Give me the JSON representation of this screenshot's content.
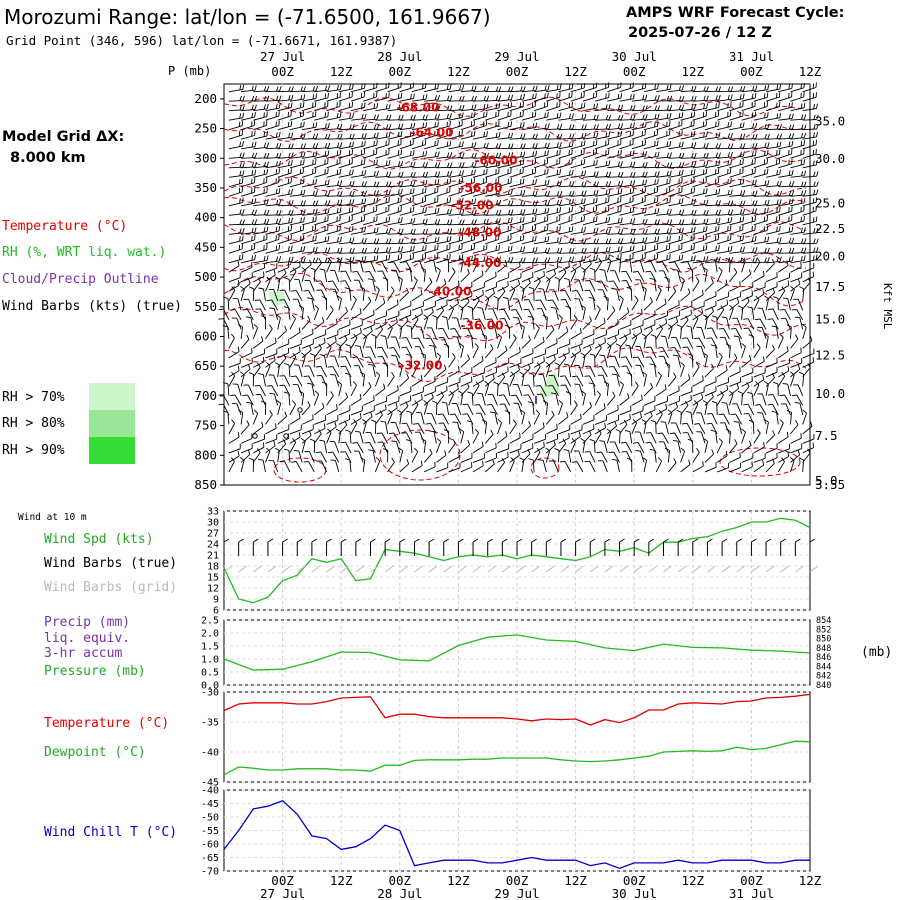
{
  "header": {
    "title": "Morozumi Range:  lat/lon = (-71.6500, 161.9667)",
    "grid_point": "Grid Point (346, 596) lat/lon = (-71.6671, 161.9387)",
    "cycle_label": "AMPS WRF Forecast Cycle:",
    "cycle_value": "2025-07-26 / 12  Z"
  },
  "left_panel": {
    "model_grid_label": "Model Grid ΔX:",
    "model_grid_value": "8.000 km",
    "legend": [
      {
        "text": "Temperature (°C)",
        "color": "#e00000"
      },
      {
        "text": "RH (%, WRT liq. wat.)",
        "color": "#22bb22"
      },
      {
        "text": "Cloud/Precip Outline",
        "color": "#7a33aa"
      },
      {
        "text": "Wind Barbs (kts) (true)",
        "color": "#000000"
      }
    ],
    "rh_legend": [
      {
        "text": "RH > 70%",
        "color": "#ccf5cc"
      },
      {
        "text": "RH > 80%",
        "color": "#99e699"
      },
      {
        "text": "RH > 90%",
        "color": "#33dd33"
      }
    ]
  },
  "time_axis": {
    "top_day_labels": [
      "27 Jul",
      "28 Jul",
      "29 Jul",
      "30 Jul",
      "31 Jul"
    ],
    "hour_labels": [
      "00Z",
      "12Z",
      "00Z",
      "12Z",
      "00Z",
      "12Z",
      "00Z",
      "12Z",
      "00Z",
      "12Z"
    ],
    "bottom_hour_labels": [
      "00Z",
      "12Z",
      "00Z",
      "12Z",
      "00Z",
      "12Z",
      "00Z",
      "12Z",
      "00Z",
      "12Z"
    ],
    "bottom_day_labels": [
      "27 Jul",
      "28 Jul",
      "29 Jul",
      "30 Jul",
      "31 Jul"
    ]
  },
  "chart_data": [
    {
      "type": "heatmap",
      "panel": "cross-section",
      "y_axis_title": "P (mb)",
      "y_ticks": [
        "200",
        "250",
        "300",
        "350",
        "400",
        "450",
        "500",
        "550",
        "600",
        "650",
        "700",
        "750",
        "800",
        "850"
      ],
      "right_ticks": [
        "35.0",
        "30.0",
        "25.0",
        "22.5",
        "20.0",
        "17.5",
        "15.0",
        "12.5",
        "10.0",
        "7.5",
        "5.0",
        "3.55"
      ],
      "right_axis_title": "Kft MSL",
      "temperature_contour_labels": [
        "-68.00",
        "-64.00",
        "-60.00",
        "-56.00",
        "-52.00",
        "-48.00",
        "-44.00",
        "-40.00",
        "-36.00",
        "-32.00"
      ],
      "temperature_contours_c": [
        -68,
        -64,
        -60,
        -56,
        -52,
        -48,
        -44,
        -40,
        -36,
        -32
      ],
      "temperature_contour_pressure_mb": [
        213,
        255,
        302,
        348,
        378,
        423,
        475,
        523,
        580,
        647
      ]
    },
    {
      "type": "line",
      "panel": "surface wind",
      "top_label": "Wind at 10 m",
      "labels": [
        {
          "text": "Wind Spd (kts)",
          "color": "#22aa22"
        },
        {
          "text": "Wind Barbs (true)",
          "color": "#000000"
        },
        {
          "text": "Wind Barbs (grid)",
          "color": "#bbbbbb"
        }
      ],
      "y_ticks": [
        "33",
        "30",
        "27",
        "24",
        "21",
        "18",
        "15",
        "12",
        "9",
        "6"
      ],
      "ylim": [
        6,
        33
      ],
      "series": [
        {
          "name": "Wind Spd (kts)",
          "color": "#22bb22",
          "x": [
            0,
            3,
            6,
            9,
            12,
            15,
            18,
            21,
            24,
            27,
            30,
            33,
            36,
            39,
            42,
            45,
            48,
            51,
            54,
            57,
            60,
            63,
            66,
            69,
            72,
            75,
            78,
            81,
            84,
            87,
            90,
            93,
            96,
            99,
            102,
            105,
            108,
            111,
            114,
            117,
            120
          ],
          "values": [
            17.5,
            9,
            8,
            9.5,
            14,
            15.5,
            20,
            19,
            20,
            14,
            14.5,
            22.5,
            22,
            21.5,
            20.5,
            19.5,
            20.5,
            21,
            20.5,
            21,
            20,
            21,
            20.5,
            20,
            19.5,
            20.5,
            22.5,
            22,
            23,
            21.5,
            24.5,
            24.5,
            25.5,
            26,
            27.5,
            28.5,
            30,
            30,
            31,
            30.5,
            28.5
          ]
        }
      ]
    },
    {
      "type": "line",
      "panel": "precip and pressure",
      "labels": [
        {
          "text": "Precip (mm)",
          "color": "#7a33aa"
        },
        {
          "text": "liq. equiv.",
          "color": "#7a33aa"
        },
        {
          "text": "3-hr accum",
          "color": "#7a33aa"
        },
        {
          "text": "Pressure (mb)",
          "color": "#22aa22"
        }
      ],
      "y_ticks_left": [
        "2.5",
        "2.0",
        "1.5",
        "1.0",
        "0.5",
        "0.0"
      ],
      "y_ticks_right": [
        "854",
        "852",
        "850",
        "848",
        "846",
        "844",
        "842",
        "840"
      ],
      "right_axis_title": "(mb)",
      "ylim_left": [
        0,
        2.5
      ],
      "ylim_right": [
        840,
        854
      ],
      "series": [
        {
          "name": "Pressure (mb)",
          "color": "#22bb22",
          "x": [
            0,
            6,
            12,
            18,
            24,
            30,
            36,
            42,
            48,
            54,
            60,
            66,
            72,
            78,
            84,
            90,
            96,
            102,
            108,
            114,
            120
          ],
          "values": [
            845.6,
            843.2,
            843.4,
            845,
            847.1,
            847,
            845.4,
            845.2,
            848.5,
            850.3,
            850.8,
            849.7,
            849.4,
            848.0,
            847.4,
            848.8,
            848.1,
            848.0,
            847.5,
            847.3,
            846.9
          ]
        }
      ]
    },
    {
      "type": "line",
      "panel": "temperature and dewpoint",
      "labels": [
        {
          "text": "Temperature (°C)",
          "color": "#e00000"
        },
        {
          "text": "Dewpoint (°C)",
          "color": "#22aa22"
        }
      ],
      "y_ticks": [
        "-30",
        "-35",
        "-40",
        "-45"
      ],
      "ylim": [
        -45,
        -30
      ],
      "series": [
        {
          "name": "Temperature (°C)",
          "color": "#dd0000",
          "x": [
            0,
            3,
            6,
            9,
            12,
            15,
            18,
            21,
            24,
            27,
            30,
            33,
            36,
            39,
            42,
            45,
            48,
            51,
            54,
            57,
            60,
            63,
            66,
            69,
            72,
            75,
            78,
            81,
            84,
            87,
            90,
            93,
            96,
            99,
            102,
            105,
            108,
            111,
            114,
            117,
            120
          ],
          "values": [
            -33.1,
            -32.0,
            -31.8,
            -31.8,
            -31.8,
            -32.0,
            -32.0,
            -31.6,
            -31.0,
            -30.9,
            -30.8,
            -34.3,
            -33.7,
            -33.7,
            -34.1,
            -34.3,
            -34.3,
            -34.3,
            -34.3,
            -34.3,
            -34.5,
            -34.8,
            -34.5,
            -34.6,
            -34.5,
            -35.5,
            -34.6,
            -35.1,
            -34.3,
            -33.0,
            -33.0,
            -32.0,
            -31.8,
            -31.9,
            -32.0,
            -31.6,
            -31.5,
            -31.0,
            -30.9,
            -30.7,
            -30.4
          ]
        },
        {
          "name": "Dewpoint (°C)",
          "color": "#22bb22",
          "x": [
            0,
            3,
            6,
            9,
            12,
            15,
            18,
            21,
            24,
            27,
            30,
            33,
            36,
            39,
            42,
            45,
            48,
            51,
            54,
            57,
            60,
            63,
            66,
            69,
            72,
            75,
            78,
            81,
            84,
            87,
            90,
            93,
            96,
            99,
            102,
            105,
            108,
            111,
            114,
            117,
            120
          ],
          "values": [
            -43.8,
            -42.5,
            -42.7,
            -43.0,
            -43.0,
            -42.8,
            -42.8,
            -42.8,
            -43.0,
            -43.0,
            -43.2,
            -42.2,
            -42.2,
            -41.4,
            -41.3,
            -41.3,
            -41.3,
            -41.2,
            -41.2,
            -41.0,
            -41.0,
            -41.0,
            -41.0,
            -41.3,
            -41.5,
            -41.6,
            -41.5,
            -41.3,
            -41.0,
            -40.7,
            -40.0,
            -39.9,
            -39.8,
            -39.9,
            -39.8,
            -39.2,
            -39.6,
            -39.4,
            -38.8,
            -38.2,
            -38.3
          ]
        }
      ]
    },
    {
      "type": "line",
      "panel": "wind chill",
      "labels": [
        {
          "text": "Wind Chill T (°C)",
          "color": "#0000cc"
        }
      ],
      "y_ticks": [
        "-40",
        "-45",
        "-50",
        "-55",
        "-60",
        "-65",
        "-70"
      ],
      "ylim": [
        -70,
        -40
      ],
      "series": [
        {
          "name": "Wind Chill T (°C)",
          "color": "#0000cc",
          "x": [
            0,
            3,
            6,
            9,
            12,
            15,
            18,
            21,
            24,
            27,
            30,
            33,
            36,
            39,
            42,
            45,
            48,
            51,
            54,
            57,
            60,
            63,
            66,
            69,
            72,
            75,
            78,
            81,
            84,
            87,
            90,
            93,
            96,
            99,
            102,
            105,
            108,
            111,
            114,
            117,
            120
          ],
          "values": [
            -62,
            -55,
            -47,
            -46,
            -44,
            -49,
            -57,
            -58,
            -62,
            -61,
            -58,
            -53,
            -55,
            -68,
            -67,
            -66,
            -66,
            -66,
            -67,
            -67,
            -66,
            -65,
            -66,
            -66,
            -66,
            -68,
            -67,
            -69,
            -67,
            -67,
            -67,
            -66,
            -67,
            -67,
            -66,
            -66,
            -66,
            -67,
            -67,
            -66,
            -66
          ]
        }
      ]
    }
  ]
}
